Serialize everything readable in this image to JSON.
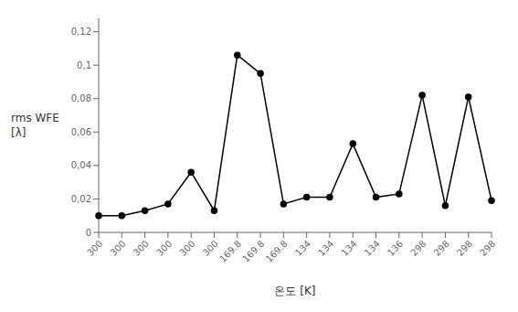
{
  "chart_data": {
    "type": "line",
    "categories": [
      "300",
      "300",
      "300",
      "300",
      "300",
      "300",
      "169.8",
      "169.8",
      "169.8",
      "134",
      "134",
      "134",
      "134",
      "136",
      "298",
      "298",
      "298",
      "298"
    ],
    "values": [
      0.01,
      0.01,
      0.013,
      0.017,
      0.036,
      0.013,
      0.106,
      0.095,
      0.017,
      0.021,
      0.021,
      0.053,
      0.021,
      0.023,
      0.082,
      0.016,
      0.081,
      0.019
    ],
    "ylabel": "rms WFE\n[λ]",
    "xlabel": "온도 [K]",
    "ylim": [
      0,
      0.128
    ],
    "yticks": [
      0,
      {
        "value": 0.02,
        "label": "0,02"
      },
      {
        "value": 0.04,
        "label": "0,04"
      },
      {
        "value": 0.06,
        "label": "0,06"
      },
      {
        "value": 0.08,
        "label": "0,08"
      },
      {
        "value": 0.1,
        "label": "0,1"
      },
      {
        "value": 0.12,
        "label": "0,12"
      }
    ],
    "color": "#000000",
    "marker": "circle",
    "grid": false
  }
}
